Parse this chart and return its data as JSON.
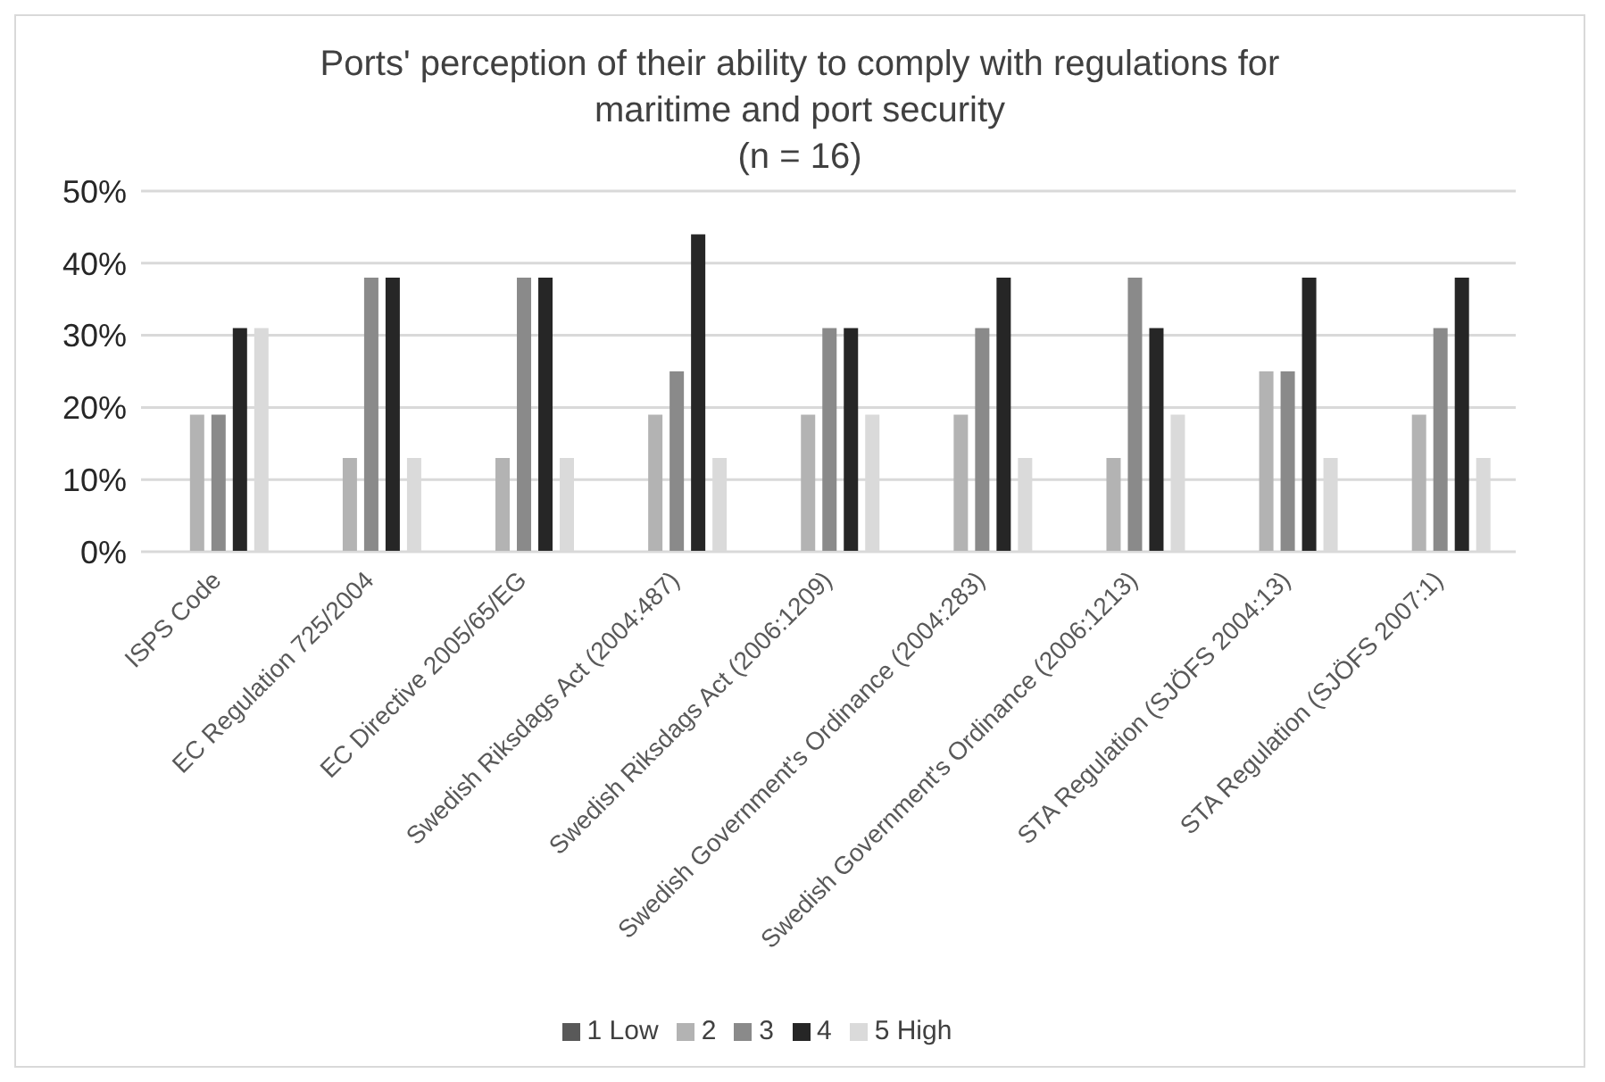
{
  "chart_data": {
    "type": "bar",
    "title": "Ports' perception of their ability to comply with regulations for maritime and port security",
    "subtitle": "(n = 16)",
    "categories": [
      "ISPS Code",
      "EC Regulation 725/2004",
      "EC Directive 2005/65/EG",
      "Swedish Riksdags Act (2004:487)",
      "Swedish Riksdags Act (2006:1209)",
      "Swedish Government's Ordinance (2004:283)",
      "Swedish Government's Ordinance (2006:1213)",
      "STA Regulation (SJÖFS 2004:13)",
      "STA Regulation  (SJÖFS 2007:1)"
    ],
    "series": [
      {
        "name": "1 Low",
        "color": "#595959",
        "values": [
          0,
          0,
          0,
          0,
          0,
          0,
          0,
          0,
          0
        ]
      },
      {
        "name": "2",
        "color": "#b3b3b3",
        "values": [
          19,
          13,
          13,
          19,
          19,
          19,
          13,
          25,
          19
        ]
      },
      {
        "name": "3",
        "color": "#8a8a8a",
        "values": [
          19,
          38,
          38,
          25,
          31,
          31,
          38,
          25,
          31
        ]
      },
      {
        "name": "4",
        "color": "#262626",
        "values": [
          31,
          38,
          38,
          44,
          31,
          38,
          31,
          38,
          38
        ]
      },
      {
        "name": "5 High",
        "color": "#dadada",
        "values": [
          31,
          13,
          13,
          13,
          19,
          13,
          19,
          13,
          13
        ]
      }
    ],
    "ylim": [
      0,
      50
    ],
    "yticks": [
      {
        "value": 0,
        "label": "0%"
      },
      {
        "value": 10,
        "label": "10%"
      },
      {
        "value": 20,
        "label": "20%"
      },
      {
        "value": 30,
        "label": "30%"
      },
      {
        "value": 40,
        "label": "40%"
      },
      {
        "value": 50,
        "label": "50%"
      }
    ],
    "grid": "y",
    "legend": "bottom"
  }
}
